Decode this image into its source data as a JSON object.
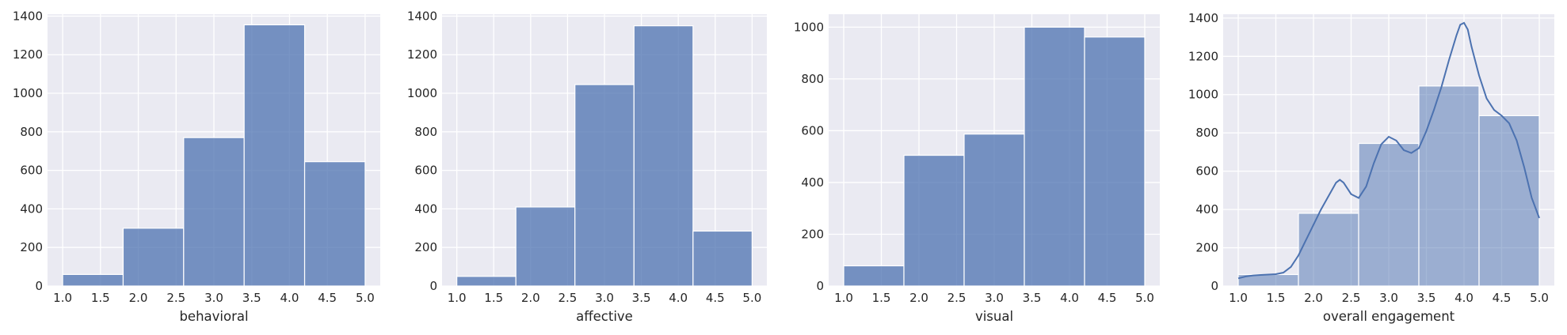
{
  "colors": {
    "panel_bg": "#EAEAF2",
    "grid": "#FFFFFF",
    "bar": "#4C72B0",
    "text": "#262626"
  },
  "chart_data": [
    {
      "type": "bar",
      "subtype": "histogram",
      "xlabel": "behavioral",
      "ylabel": "",
      "bin_edges": [
        1.0,
        1.8,
        2.6,
        3.4,
        4.2,
        5.0
      ],
      "values": [
        60,
        300,
        770,
        1355,
        645
      ],
      "xlim": [
        0.8,
        5.2
      ],
      "ylim": [
        0,
        1410
      ],
      "xticks": [
        "1.0",
        "1.5",
        "2.0",
        "2.5",
        "3.0",
        "3.5",
        "4.0",
        "4.5",
        "5.0"
      ],
      "yticks": [
        "0",
        "200",
        "400",
        "600",
        "800",
        "1000",
        "1200",
        "1400"
      ],
      "grid": true,
      "bar_alpha": 0.75,
      "kde": false
    },
    {
      "type": "bar",
      "subtype": "histogram",
      "xlabel": "affective",
      "ylabel": "",
      "bin_edges": [
        1.0,
        1.8,
        2.6,
        3.4,
        4.2,
        5.0
      ],
      "values": [
        50,
        410,
        1045,
        1350,
        285
      ],
      "xlim": [
        0.8,
        5.2
      ],
      "ylim": [
        0,
        1410
      ],
      "xticks": [
        "1.0",
        "1.5",
        "2.0",
        "2.5",
        "3.0",
        "3.5",
        "4.0",
        "4.5",
        "5.0"
      ],
      "yticks": [
        "0",
        "200",
        "400",
        "600",
        "800",
        "1000",
        "1200",
        "1400"
      ],
      "grid": true,
      "bar_alpha": 0.75,
      "kde": false
    },
    {
      "type": "bar",
      "subtype": "histogram",
      "xlabel": "visual",
      "ylabel": "",
      "bin_edges": [
        1.0,
        1.8,
        2.6,
        3.4,
        4.2,
        5.0
      ],
      "values": [
        78,
        505,
        587,
        1000,
        962
      ],
      "xlim": [
        0.8,
        5.2
      ],
      "ylim": [
        0,
        1050
      ],
      "xticks": [
        "1.0",
        "1.5",
        "2.0",
        "2.5",
        "3.0",
        "3.5",
        "4.0",
        "4.5",
        "5.0"
      ],
      "yticks": [
        "0",
        "200",
        "400",
        "600",
        "800",
        "1000"
      ],
      "grid": true,
      "bar_alpha": 0.75,
      "kde": false
    },
    {
      "type": "bar",
      "subtype": "histogram",
      "xlabel": "overall engagement",
      "ylabel": "",
      "bin_edges": [
        1.0,
        1.8,
        2.6,
        3.4,
        4.2,
        5.0
      ],
      "values": [
        60,
        380,
        745,
        1045,
        890
      ],
      "xlim": [
        0.8,
        5.2
      ],
      "ylim": [
        0,
        1420
      ],
      "xticks": [
        "1.0",
        "1.5",
        "2.0",
        "2.5",
        "3.0",
        "3.5",
        "4.0",
        "4.5",
        "5.0"
      ],
      "yticks": [
        "0",
        "200",
        "400",
        "600",
        "800",
        "1000",
        "1200",
        "1400"
      ],
      "grid": true,
      "bar_alpha": 0.5,
      "kde": true,
      "kde_points": [
        [
          1.0,
          40
        ],
        [
          1.1,
          50
        ],
        [
          1.2,
          55
        ],
        [
          1.3,
          58
        ],
        [
          1.4,
          60
        ],
        [
          1.5,
          62
        ],
        [
          1.6,
          70
        ],
        [
          1.7,
          100
        ],
        [
          1.8,
          160
        ],
        [
          1.9,
          240
        ],
        [
          2.0,
          320
        ],
        [
          2.1,
          400
        ],
        [
          2.2,
          470
        ],
        [
          2.3,
          540
        ],
        [
          2.35,
          555
        ],
        [
          2.4,
          540
        ],
        [
          2.5,
          480
        ],
        [
          2.6,
          460
        ],
        [
          2.7,
          520
        ],
        [
          2.8,
          640
        ],
        [
          2.9,
          740
        ],
        [
          3.0,
          780
        ],
        [
          3.1,
          760
        ],
        [
          3.2,
          710
        ],
        [
          3.3,
          695
        ],
        [
          3.4,
          720
        ],
        [
          3.5,
          810
        ],
        [
          3.6,
          920
        ],
        [
          3.7,
          1040
        ],
        [
          3.8,
          1180
        ],
        [
          3.9,
          1310
        ],
        [
          3.95,
          1365
        ],
        [
          4.0,
          1375
        ],
        [
          4.05,
          1340
        ],
        [
          4.1,
          1250
        ],
        [
          4.2,
          1100
        ],
        [
          4.3,
          980
        ],
        [
          4.4,
          920
        ],
        [
          4.5,
          890
        ],
        [
          4.6,
          850
        ],
        [
          4.7,
          760
        ],
        [
          4.8,
          620
        ],
        [
          4.9,
          460
        ],
        [
          5.0,
          355
        ]
      ]
    }
  ]
}
